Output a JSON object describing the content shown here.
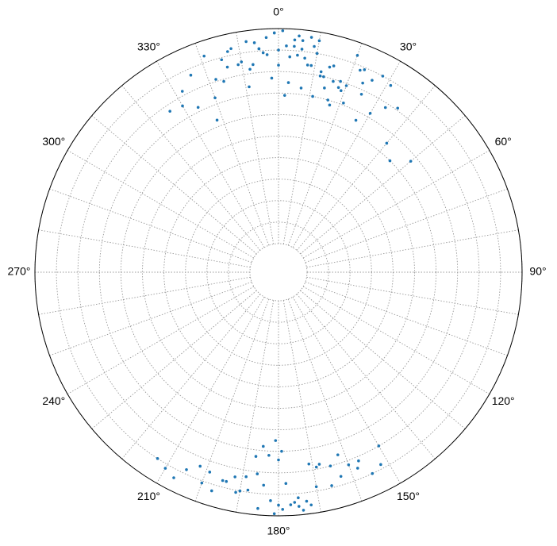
{
  "chart_data": {
    "type": "polar_scatter",
    "rlim": [
      0,
      100
    ],
    "rticks": [
      0,
      10,
      20,
      30,
      40,
      50,
      60,
      70,
      80,
      90,
      100
    ],
    "thetagrid": [
      0,
      10,
      20,
      30,
      40,
      50,
      60,
      70,
      80,
      90,
      100,
      110,
      120,
      130,
      140,
      150,
      160,
      170,
      180,
      190,
      200,
      210,
      220,
      230,
      240,
      250,
      260,
      270,
      280,
      290,
      300,
      310,
      320,
      330,
      340,
      350
    ],
    "thetaticks": [
      {
        "value": 0,
        "label": "0°"
      },
      {
        "value": 30,
        "label": "30°"
      },
      {
        "value": 60,
        "label": "60°"
      },
      {
        "value": 90,
        "label": "90°"
      },
      {
        "value": 120,
        "label": "120°"
      },
      {
        "value": 150,
        "label": "150°"
      },
      {
        "value": 180,
        "label": "180°"
      },
      {
        "value": 210,
        "label": "210°"
      },
      {
        "value": 240,
        "label": "240°"
      },
      {
        "value": 270,
        "label": "270°"
      },
      {
        "value": 300,
        "label": "300°"
      },
      {
        "value": 330,
        "label": "330°"
      }
    ],
    "grid": true,
    "series": [
      {
        "color": "#1f77b4",
        "theta": [
          -3,
          2,
          5,
          -8,
          10,
          14,
          -12,
          18,
          -1,
          7,
          3,
          -5,
          12,
          20,
          -15,
          25,
          8,
          -10,
          0,
          16,
          4,
          -7,
          22,
          -18,
          11,
          6,
          -2,
          28,
          -20,
          15,
          9,
          -14,
          1,
          19,
          -4,
          13,
          30,
          -24,
          24,
          -9,
          6,
          17,
          -6,
          3,
          33,
          -28,
          10,
          21,
          -11,
          0,
          27,
          -16,
          5,
          14,
          -3,
          36,
          -22,
          8,
          18,
          -13,
          2,
          26,
          -30,
          12,
          40,
          -19,
          7,
          23,
          -8,
          4,
          45,
          -34,
          16,
          -1,
          31,
          -26,
          9,
          20,
          -5,
          50
        ],
        "r": [
          96,
          92,
          88,
          95,
          90,
          85,
          93,
          80,
          98,
          87,
          75,
          91,
          82,
          94,
          89,
          78,
          97,
          86,
          83,
          79,
          92,
          84,
          88,
          81,
          70,
          95,
          77,
          90,
          73,
          86,
          93,
          85,
          99,
          76,
          89,
          80,
          72,
          87,
          83,
          74,
          91,
          68,
          94,
          87,
          78,
          82,
          96,
          71,
          85,
          90,
          66,
          79,
          97,
          75,
          88,
          81,
          63,
          84,
          77,
          92,
          69,
          86,
          76,
          80,
          65,
          93,
          73,
          89,
          82,
          95,
          60,
          77,
          70,
          98,
          88,
          72,
          84,
          79,
          91,
          67
        ]
      },
      {
        "color": "#1f77b4",
        "theta": [
          180,
          175,
          185,
          170,
          190,
          178,
          182,
          165,
          195,
          172,
          188,
          160,
          200,
          176,
          184,
          168,
          192,
          155,
          205,
          180,
          174,
          186,
          163,
          197,
          179,
          181,
          158,
          210,
          171,
          189,
          166,
          194,
          177,
          183,
          152,
          207,
          169,
          191,
          162,
          199,
          185,
          175,
          213,
          157,
          187,
          173,
          181,
          202,
          150,
          179
        ],
        "r": [
          95,
          92,
          97,
          88,
          90,
          85,
          93,
          80,
          87,
          96,
          89,
          82,
          91,
          94,
          86,
          78,
          84,
          90,
          88,
          74,
          98,
          81,
          86,
          93,
          70,
          99,
          85,
          92,
          77,
          83,
          89,
          87,
          95,
          72,
          88,
          94,
          79,
          91,
          76,
          85,
          68,
          96,
          90,
          82,
          73,
          94,
          65,
          84,
          80,
          97
        ]
      }
    ]
  }
}
